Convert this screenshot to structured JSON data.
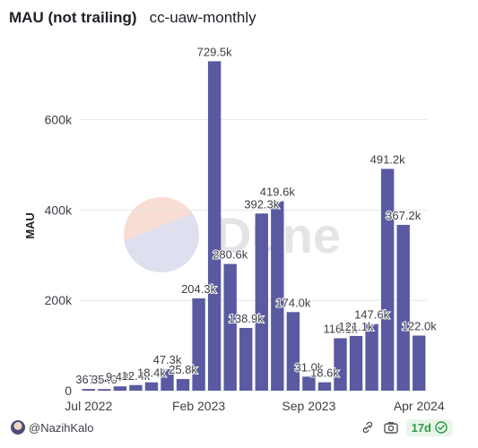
{
  "header": {
    "title": "MAU (not trailing)",
    "subtitle": "cc-uaw-monthly"
  },
  "watermark": {
    "text": "Dune"
  },
  "footer": {
    "author": "@NazihKalo",
    "refresh_badge": "17d"
  },
  "colors": {
    "bar": "#5a5aa2",
    "grid": "#e6e6e6"
  },
  "chart_data": {
    "type": "bar",
    "ylabel": "MAU",
    "ylim": [
      0,
      760000
    ],
    "yticks": [
      0,
      200000,
      400000,
      600000
    ],
    "ytick_labels": [
      "0",
      "200k",
      "400k",
      "600k"
    ],
    "xtick_labels": [
      {
        "index": 0,
        "label": "Jul 2022"
      },
      {
        "index": 7,
        "label": "Feb 2023"
      },
      {
        "index": 14,
        "label": "Sep 2023"
      },
      {
        "index": 21,
        "label": "Apr 2024"
      }
    ],
    "categories": [
      "Jul 2022",
      "Aug 2022",
      "Sep 2022",
      "Oct 2022",
      "Nov 2022",
      "Dec 2022",
      "Jan 2023",
      "Feb 2023",
      "Mar 2023",
      "Apr 2023",
      "May 2023",
      "Jun 2023",
      "Jul 2023",
      "Aug 2023",
      "Sep 2023",
      "Oct 2023",
      "Nov 2023",
      "Dec 2023",
      "Jan 2024",
      "Feb 2024",
      "Mar 2024",
      "Apr 2024"
    ],
    "values": [
      3675,
      3540,
      9480,
      12400,
      18400,
      47300,
      25800,
      204300,
      729500,
      280600,
      138900,
      392300,
      419600,
      174000,
      31000,
      18600,
      116100,
      121100,
      147600,
      491200,
      367200,
      122000
    ],
    "labels": [
      "3675",
      "3540",
      "9.48k",
      "12.4k",
      "18.4k",
      "47.3k",
      "25.8k",
      "204.3k",
      "729.5k",
      "280.6k",
      "138.9k",
      "392.3k",
      "419.6k",
      "174.0k",
      "31.0k",
      "18.6k",
      "116.1k",
      "121.1k",
      "147.6k",
      "491.2k",
      "367.2k",
      "122.0k"
    ],
    "grid": true,
    "legend": "none"
  }
}
